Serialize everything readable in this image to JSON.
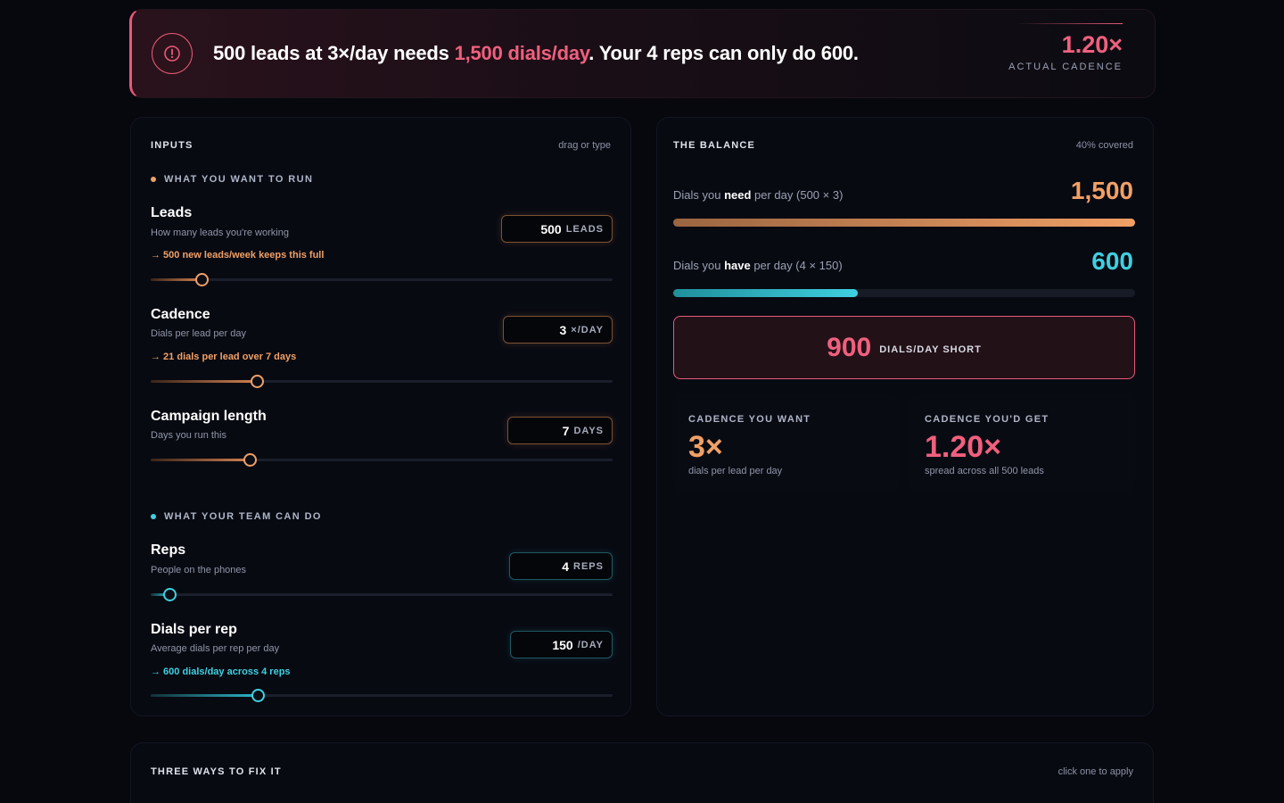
{
  "alert": {
    "icon": "alert-circle-icon",
    "text_before": "500 leads at 3×/day needs ",
    "text_highlight": "1,500 dials/day",
    "text_after": ". Your 4 reps can only do 600.",
    "metric_value": "1.20×",
    "metric_label": "ACTUAL CADENCE"
  },
  "inputs": {
    "title": "INPUTS",
    "hint": "drag or type",
    "section_run": "WHAT YOU WANT TO RUN",
    "section_team": "WHAT YOUR TEAM CAN DO",
    "leads": {
      "title": "Leads",
      "desc": "How many leads you're working",
      "note": "→ 500 new leads/week keeps this full",
      "value": "500",
      "unit": "LEADS",
      "level": 0.11
    },
    "cadence": {
      "title": "Cadence",
      "desc": "Dials per lead per day",
      "note": "→ 21 dials per lead over 7 days",
      "value": "3",
      "unit": "×/DAY",
      "level": 0.23
    },
    "campaign": {
      "title": "Campaign length",
      "desc": "Days you run this",
      "value": "7",
      "unit": "DAYS",
      "level": 0.215
    },
    "reps": {
      "title": "Reps",
      "desc": "People on the phones",
      "value": "4",
      "unit": "REPS",
      "level": 0.04
    },
    "dials": {
      "title": "Dials per rep",
      "desc": "Average dials per rep per day",
      "note": "→ 600 dials/day across 4 reps",
      "value": "150",
      "unit": "/DAY",
      "level": 0.232
    }
  },
  "balance": {
    "title": "THE BALANCE",
    "hint": "40% covered",
    "need_pre": "Dials you ",
    "need_bold": "need",
    "need_post": " per day (500 × 3)",
    "need_value": "1,500",
    "need_fill": 1.0,
    "have_pre": "Dials you ",
    "have_bold": "have",
    "have_post": " per day (4 × 150)",
    "have_value": "600",
    "have_fill": 0.4,
    "short_value": "900",
    "short_label": "DIALS/DAY SHORT",
    "want_title": "CADENCE YOU WANT",
    "want_value": "3×",
    "want_sub": "dials per lead per day",
    "get_title": "CADENCE YOU'D GET",
    "get_value": "1.20×",
    "get_sub": "spread across all 500 leads"
  },
  "fix": {
    "title": "THREE WAYS TO FIX IT",
    "hint": "click one to apply"
  },
  "colors": {
    "accent_pink": "#f0607e",
    "accent_orange": "#f0a066",
    "accent_cyan": "#3fd0e0",
    "background": "#06080e"
  }
}
